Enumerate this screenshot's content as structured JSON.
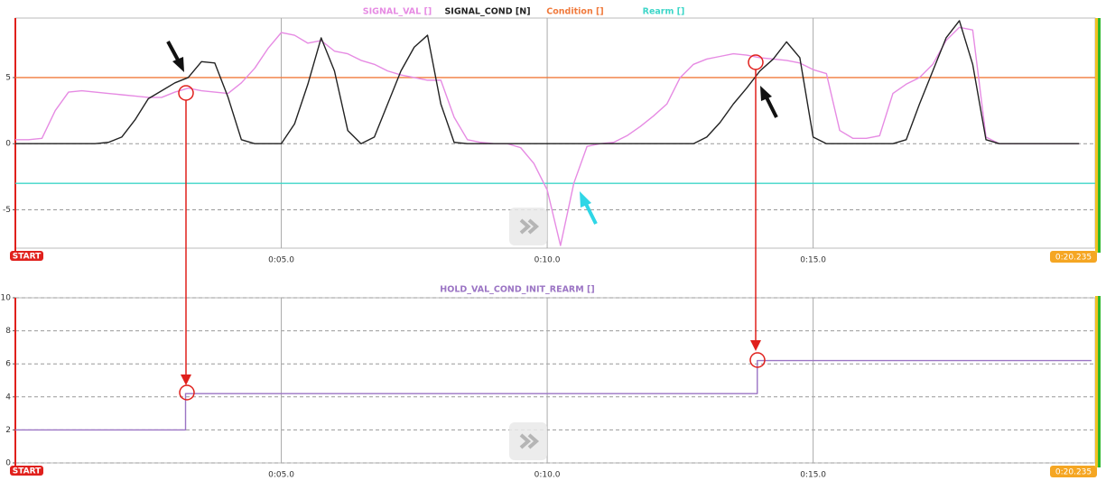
{
  "chart_data": [
    {
      "type": "line",
      "x": [
        0,
        0.25,
        0.5,
        0.75,
        1,
        1.25,
        1.5,
        1.75,
        2,
        2.25,
        2.5,
        2.75,
        3,
        3.25,
        3.5,
        3.75,
        4,
        4.25,
        4.5,
        4.75,
        5,
        5.25,
        5.5,
        5.75,
        6,
        6.25,
        6.5,
        6.75,
        7,
        7.25,
        7.5,
        7.75,
        8,
        8.25,
        8.5,
        8.75,
        9,
        9.25,
        9.5,
        9.75,
        10,
        10.25,
        10.5,
        10.75,
        11,
        11.25,
        11.5,
        11.75,
        12,
        12.25,
        12.5,
        12.75,
        13,
        13.25,
        13.5,
        13.75,
        14,
        14.25,
        14.5,
        14.75,
        15,
        15.25,
        15.5,
        15.75,
        16,
        16.25,
        16.5,
        16.75,
        17,
        17.25,
        17.5,
        17.75,
        18,
        18.25,
        18.5,
        18.75,
        19,
        19.25,
        19.5,
        19.75,
        20
      ],
      "series": [
        {
          "name": "SIGNAL_VAL []",
          "color": "#e68be3",
          "values": [
            0.3,
            0.3,
            0.4,
            2.5,
            3.9,
            4.0,
            3.9,
            3.8,
            3.7,
            3.6,
            3.5,
            3.5,
            3.9,
            4.2,
            4.0,
            3.9,
            3.8,
            4.6,
            5.7,
            7.2,
            8.4,
            8.2,
            7.6,
            7.8,
            7.0,
            6.8,
            6.3,
            6.0,
            5.5,
            5.2,
            5.0,
            4.8,
            4.8,
            2.0,
            0.3,
            0.1,
            0,
            0,
            -0.3,
            -1.5,
            -3.5,
            -7.7,
            -3.0,
            -0.2,
            0,
            0.1,
            0.6,
            1.3,
            2.1,
            3.0,
            5.0,
            6.0,
            6.4,
            6.6,
            6.8,
            6.7,
            6.5,
            6.4,
            6.3,
            6.1,
            5.6,
            5.3,
            1.0,
            0.4,
            0.4,
            0.6,
            3.8,
            4.5,
            5.0,
            6.0,
            7.8,
            8.8,
            8.6,
            0.5,
            0,
            0,
            0,
            0,
            0,
            0,
            0
          ]
        },
        {
          "name": "SIGNAL_COND [N]",
          "color": "#222222",
          "values": [
            0,
            0,
            0,
            0,
            0,
            0,
            0,
            0.1,
            0.5,
            1.8,
            3.4,
            4.0,
            4.6,
            5.0,
            6.2,
            6.1,
            3.5,
            0.3,
            0,
            0,
            0,
            1.5,
            4.5,
            8.0,
            5.5,
            1.0,
            0,
            0.5,
            3.0,
            5.5,
            7.3,
            8.2,
            3.0,
            0.1,
            0,
            0,
            0,
            0,
            0,
            0,
            0,
            0,
            0,
            0,
            0,
            0,
            0,
            0,
            0,
            0,
            0,
            0,
            0.5,
            1.6,
            3.0,
            4.2,
            5.5,
            6.4,
            7.7,
            6.5,
            0.5,
            0,
            0,
            0,
            0,
            0,
            0,
            0.3,
            3.0,
            5.5,
            8.0,
            9.3,
            6.0,
            0.3,
            0,
            0,
            0,
            0,
            0,
            0,
            0
          ]
        }
      ],
      "reference_lines": [
        {
          "name": "Condition []",
          "color": "#f07a3c",
          "value": 5
        },
        {
          "name": "Rearm []",
          "color": "#3dd6c8",
          "value": -3
        }
      ],
      "xlim": [
        0,
        20.235
      ],
      "xticks": [
        {
          "value": 5,
          "label": "0:05.0"
        },
        {
          "value": 10,
          "label": "0:10.0"
        },
        {
          "value": 15,
          "label": "0:15.0"
        }
      ],
      "ylim": [
        -7.9,
        9.5
      ],
      "yticks": [
        -5,
        0,
        5
      ],
      "grid": true,
      "start_label": "START",
      "end_label": "0:20.235"
    },
    {
      "type": "line",
      "step": "post",
      "x": [
        0,
        3.2,
        13.95,
        20.235
      ],
      "series": [
        {
          "name": "HOLD_VAL_COND_INIT_REARM []",
          "color": "#9b74c4",
          "values": [
            2,
            4.2,
            6.2,
            6.2
          ]
        }
      ],
      "xlim": [
        0,
        20.235
      ],
      "xticks": [
        {
          "value": 5,
          "label": "0:05.0"
        },
        {
          "value": 10,
          "label": "0:10.0"
        },
        {
          "value": 15,
          "label": "0:15.0"
        }
      ],
      "ylim": [
        0,
        10
      ],
      "yticks": [
        0,
        2,
        4,
        6,
        8,
        10
      ],
      "grid": true,
      "start_label": "START",
      "end_label": "0:20.235"
    }
  ]
}
